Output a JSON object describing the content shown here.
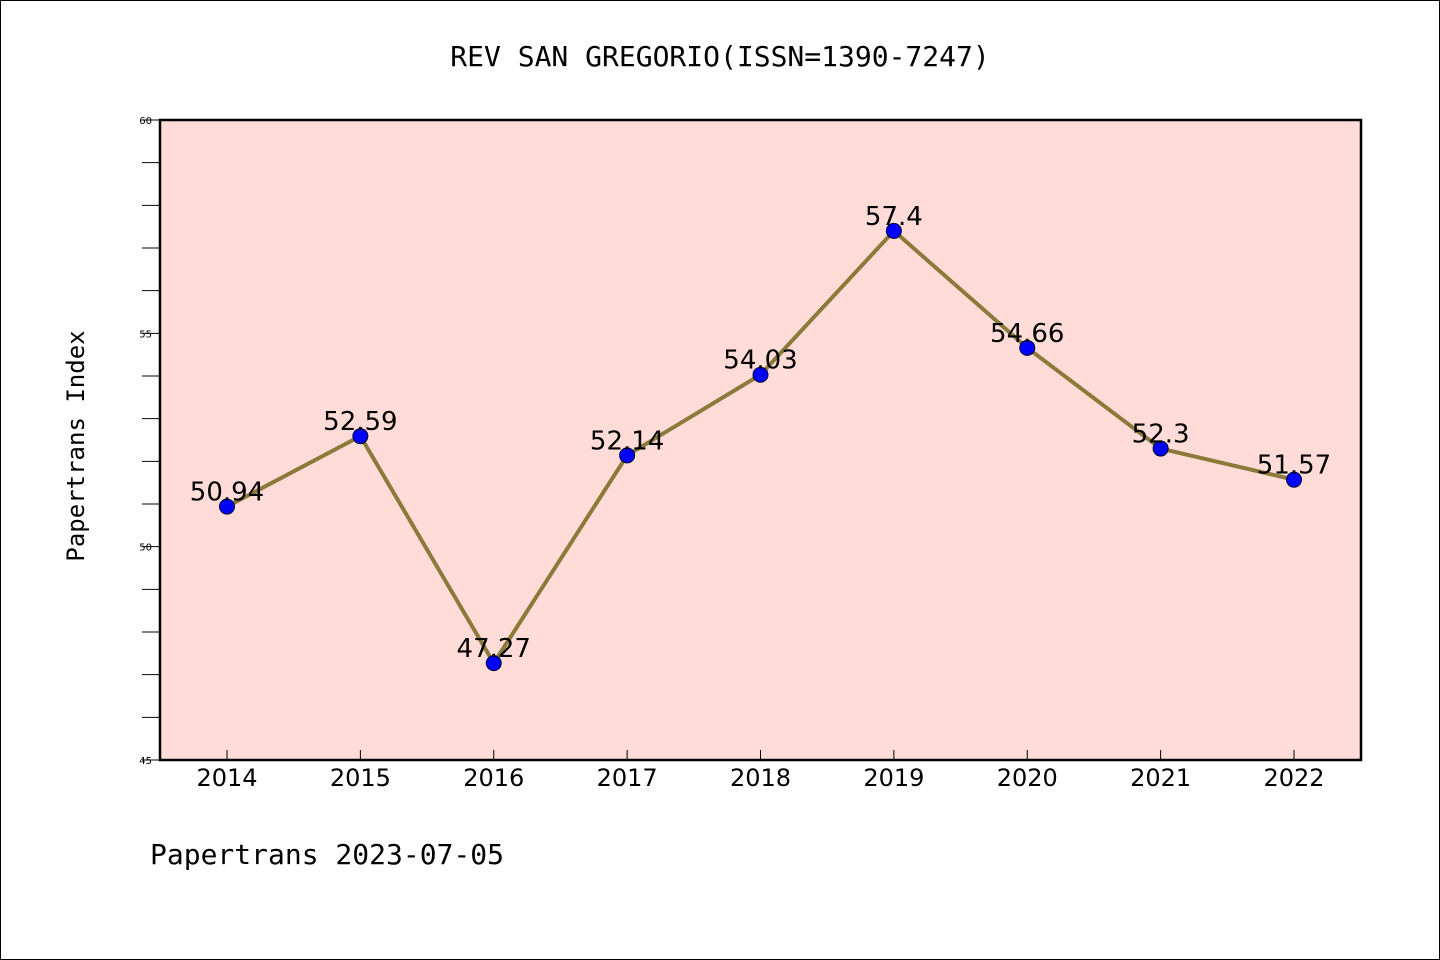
{
  "chart_data": {
    "type": "line",
    "title": "REV SAN GREGORIO(ISSN=1390-7247)",
    "ylabel": "Papertrans Index",
    "xlabel": "",
    "footer": "Papertrans 2023-07-05",
    "x": [
      "2014",
      "2015",
      "2016",
      "2017",
      "2018",
      "2019",
      "2020",
      "2021",
      "2022"
    ],
    "series": [
      {
        "values": [
          50.94,
          52.59,
          47.27,
          52.14,
          54.03,
          57.4,
          54.66,
          52.3,
          51.57
        ],
        "labels": [
          "50.94",
          "52.59",
          "47.27",
          "52.14",
          "54.03",
          "57.4",
          "54.66",
          "52.3",
          "51.57"
        ]
      }
    ],
    "ylim": [
      45,
      60
    ],
    "yticks": [
      "45",
      "50",
      "55",
      "60"
    ],
    "colors": {
      "plot_bg": "#ffdcd8",
      "line": "#8b7a3a",
      "marker": "#0000ff"
    }
  }
}
